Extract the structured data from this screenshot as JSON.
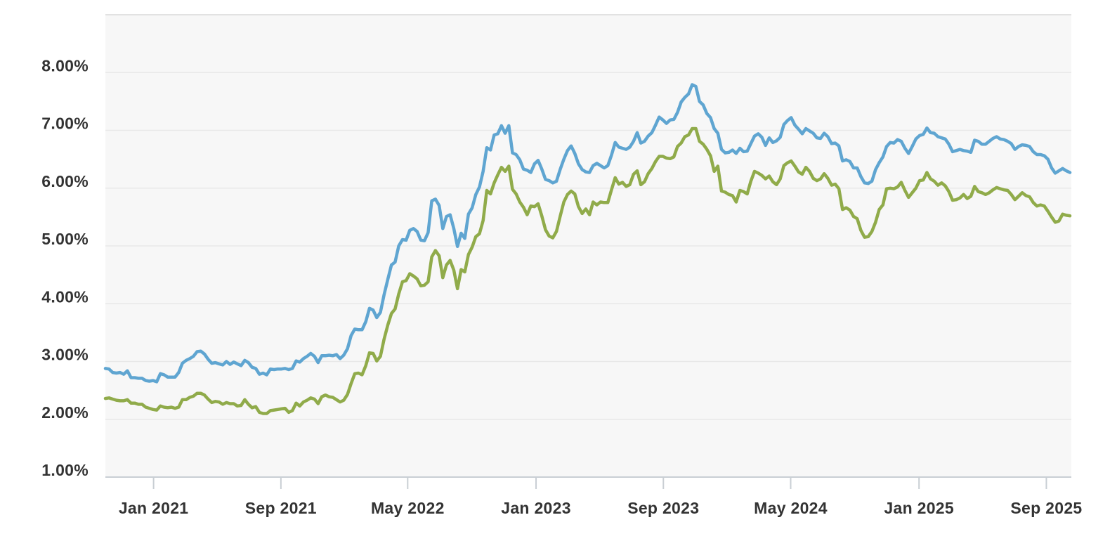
{
  "chart_data": {
    "type": "line",
    "title": "",
    "xlabel": "",
    "ylabel": "",
    "legend": "none",
    "grid": true,
    "ylim": [
      1,
      9
    ],
    "y_ticks": [
      {
        "value": 1,
        "label": "1.00%"
      },
      {
        "value": 2,
        "label": "2.00%"
      },
      {
        "value": 3,
        "label": "3.00%"
      },
      {
        "value": 4,
        "label": "4.00%"
      },
      {
        "value": 5,
        "label": "5.00%"
      },
      {
        "value": 6,
        "label": "6.00%"
      },
      {
        "value": 7,
        "label": "7.00%"
      },
      {
        "value": 8,
        "label": "8.00%"
      }
    ],
    "x_start_date": "2020-10-01",
    "point_interval_days": 7,
    "x_ticks": [
      {
        "date": "2021-01-01",
        "label": "Jan 2021"
      },
      {
        "date": "2021-09-01",
        "label": "Sep 2021"
      },
      {
        "date": "2022-05-01",
        "label": "May 2022"
      },
      {
        "date": "2023-01-01",
        "label": "Jan 2023"
      },
      {
        "date": "2023-09-01",
        "label": "Sep 2023"
      },
      {
        "date": "2024-05-01",
        "label": "May 2024"
      },
      {
        "date": "2025-01-01",
        "label": "Jan 2025"
      },
      {
        "date": "2025-09-01",
        "label": "Sep 2025"
      }
    ],
    "series": [
      {
        "name": "blue",
        "color": "#5fa5d1",
        "values": [
          2.88,
          2.87,
          2.81,
          2.8,
          2.81,
          2.78,
          2.84,
          2.72,
          2.72,
          2.71,
          2.71,
          2.67,
          2.66,
          2.67,
          2.65,
          2.79,
          2.77,
          2.73,
          2.73,
          2.73,
          2.81,
          2.97,
          3.02,
          3.05,
          3.09,
          3.17,
          3.18,
          3.13,
          3.04,
          2.97,
          2.98,
          2.96,
          2.94,
          3.0,
          2.95,
          2.99,
          2.96,
          2.93,
          3.02,
          2.98,
          2.9,
          2.88,
          2.78,
          2.8,
          2.77,
          2.87,
          2.86,
          2.87,
          2.87,
          2.88,
          2.86,
          2.88,
          3.01,
          2.99,
          3.05,
          3.09,
          3.14,
          3.09,
          2.98,
          3.1,
          3.1,
          3.11,
          3.1,
          3.12,
          3.05,
          3.11,
          3.22,
          3.45,
          3.56,
          3.55,
          3.55,
          3.69,
          3.92,
          3.89,
          3.76,
          3.85,
          4.16,
          4.42,
          4.67,
          4.72,
          5.0,
          5.11,
          5.1,
          5.27,
          5.3,
          5.25,
          5.1,
          5.09,
          5.23,
          5.78,
          5.81,
          5.7,
          5.3,
          5.51,
          5.54,
          5.3,
          4.99,
          5.22,
          5.13,
          5.55,
          5.66,
          5.89,
          6.02,
          6.29,
          6.7,
          6.66,
          6.92,
          6.94,
          7.08,
          6.95,
          7.08,
          6.61,
          6.58,
          6.49,
          6.33,
          6.31,
          6.27,
          6.42,
          6.48,
          6.33,
          6.15,
          6.13,
          6.09,
          6.12,
          6.32,
          6.5,
          6.65,
          6.73,
          6.6,
          6.42,
          6.32,
          6.28,
          6.27,
          6.39,
          6.43,
          6.39,
          6.35,
          6.39,
          6.57,
          6.79,
          6.71,
          6.69,
          6.67,
          6.71,
          6.81,
          6.96,
          6.78,
          6.81,
          6.9,
          6.96,
          7.09,
          7.23,
          7.18,
          7.12,
          7.18,
          7.19,
          7.31,
          7.49,
          7.57,
          7.63,
          7.79,
          7.76,
          7.5,
          7.44,
          7.29,
          7.22,
          7.03,
          6.95,
          6.67,
          6.61,
          6.62,
          6.66,
          6.6,
          6.69,
          6.63,
          6.64,
          6.77,
          6.9,
          6.94,
          6.88,
          6.74,
          6.87,
          6.79,
          6.82,
          6.88,
          7.1,
          7.17,
          7.22,
          7.09,
          7.02,
          6.94,
          7.03,
          6.99,
          6.95,
          6.87,
          6.86,
          6.95,
          6.89,
          6.77,
          6.78,
          6.73,
          6.47,
          6.49,
          6.46,
          6.35,
          6.35,
          6.2,
          6.09,
          6.08,
          6.12,
          6.32,
          6.44,
          6.54,
          6.72,
          6.79,
          6.78,
          6.84,
          6.81,
          6.69,
          6.6,
          6.72,
          6.85,
          6.91,
          6.93,
          7.04,
          6.96,
          6.95,
          6.89,
          6.87,
          6.85,
          6.76,
          6.63,
          6.65,
          6.67,
          6.65,
          6.64,
          6.62,
          6.83,
          6.81,
          6.76,
          6.76,
          6.81,
          6.86,
          6.89,
          6.85,
          6.84,
          6.81,
          6.77,
          6.67,
          6.72,
          6.75,
          6.74,
          6.72,
          6.63,
          6.58,
          6.58,
          6.56,
          6.5,
          6.35,
          6.26,
          6.3,
          6.34,
          6.3,
          6.27
        ]
      },
      {
        "name": "green",
        "color": "#90ab4a",
        "values": [
          2.36,
          2.37,
          2.35,
          2.33,
          2.32,
          2.32,
          2.34,
          2.28,
          2.28,
          2.26,
          2.26,
          2.21,
          2.19,
          2.17,
          2.16,
          2.23,
          2.21,
          2.2,
          2.21,
          2.19,
          2.21,
          2.34,
          2.34,
          2.38,
          2.4,
          2.45,
          2.45,
          2.42,
          2.35,
          2.29,
          2.31,
          2.3,
          2.26,
          2.29,
          2.27,
          2.27,
          2.23,
          2.24,
          2.34,
          2.26,
          2.2,
          2.22,
          2.12,
          2.1,
          2.1,
          2.15,
          2.16,
          2.17,
          2.18,
          2.19,
          2.12,
          2.15,
          2.28,
          2.23,
          2.3,
          2.33,
          2.37,
          2.35,
          2.27,
          2.39,
          2.42,
          2.39,
          2.38,
          2.34,
          2.3,
          2.33,
          2.43,
          2.62,
          2.79,
          2.8,
          2.77,
          2.93,
          3.15,
          3.14,
          3.01,
          3.09,
          3.39,
          3.63,
          3.83,
          3.91,
          4.17,
          4.38,
          4.4,
          4.52,
          4.48,
          4.43,
          4.31,
          4.32,
          4.38,
          4.81,
          4.92,
          4.83,
          4.45,
          4.67,
          4.75,
          4.58,
          4.26,
          4.59,
          4.55,
          4.85,
          4.98,
          5.16,
          5.21,
          5.44,
          5.96,
          5.9,
          6.09,
          6.23,
          6.36,
          6.29,
          6.38,
          5.98,
          5.9,
          5.76,
          5.67,
          5.54,
          5.69,
          5.68,
          5.73,
          5.52,
          5.28,
          5.17,
          5.14,
          5.25,
          5.51,
          5.76,
          5.89,
          5.95,
          5.9,
          5.68,
          5.56,
          5.64,
          5.54,
          5.76,
          5.71,
          5.76,
          5.75,
          5.75,
          5.97,
          6.18,
          6.07,
          6.1,
          6.03,
          6.06,
          6.24,
          6.3,
          6.06,
          6.11,
          6.25,
          6.34,
          6.46,
          6.55,
          6.55,
          6.52,
          6.51,
          6.54,
          6.72,
          6.78,
          6.89,
          6.92,
          7.03,
          7.03,
          6.81,
          6.76,
          6.67,
          6.56,
          6.29,
          6.38,
          5.95,
          5.93,
          5.89,
          5.87,
          5.76,
          5.96,
          5.94,
          5.9,
          6.12,
          6.29,
          6.26,
          6.22,
          6.16,
          6.21,
          6.11,
          6.06,
          6.16,
          6.39,
          6.44,
          6.47,
          6.38,
          6.28,
          6.24,
          6.36,
          6.29,
          6.17,
          6.13,
          6.16,
          6.25,
          6.17,
          6.05,
          6.07,
          5.99,
          5.63,
          5.66,
          5.62,
          5.51,
          5.47,
          5.27,
          5.15,
          5.16,
          5.25,
          5.41,
          5.63,
          5.71,
          5.99,
          6.0,
          5.99,
          6.02,
          6.1,
          5.96,
          5.84,
          5.92,
          6.0,
          6.13,
          6.14,
          6.27,
          6.16,
          6.12,
          6.05,
          6.09,
          6.04,
          5.94,
          5.79,
          5.8,
          5.83,
          5.89,
          5.82,
          5.86,
          6.03,
          5.94,
          5.92,
          5.89,
          5.92,
          5.97,
          6.01,
          5.99,
          5.97,
          5.96,
          5.89,
          5.8,
          5.86,
          5.92,
          5.87,
          5.85,
          5.75,
          5.69,
          5.71,
          5.69,
          5.6,
          5.5,
          5.41,
          5.43,
          5.55,
          5.53,
          5.52
        ]
      }
    ]
  },
  "colors": {
    "page_background": "#ffffff",
    "plot_background": "#f7f7f7",
    "gridline": "#e8e8e8",
    "plot_top_border": "#e2e2e2",
    "axis_line": "#c9cfd4",
    "tick": "#c9cfd4",
    "label_text": "#333333"
  }
}
